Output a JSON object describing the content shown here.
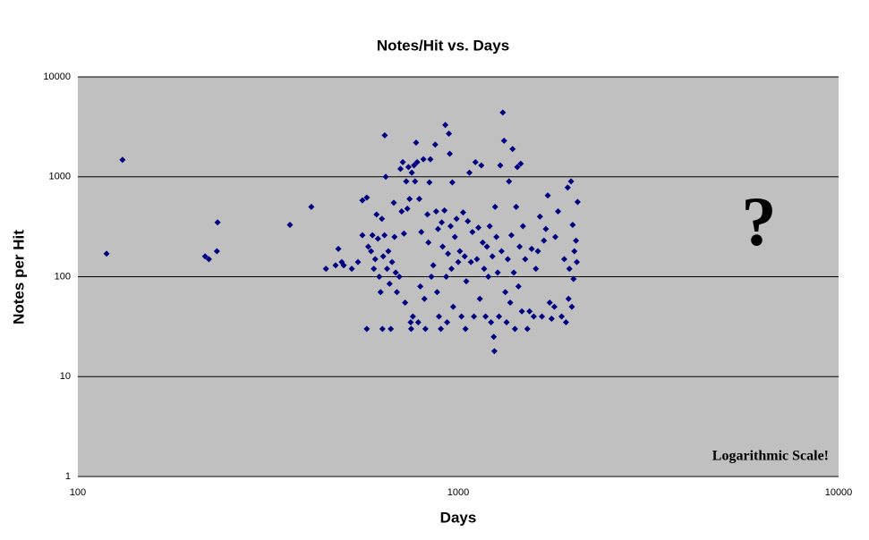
{
  "chart_data": {
    "type": "scatter",
    "title": "Notes/Hit vs. Days",
    "x_label": "Days",
    "y_label": "Notes per Hit",
    "annotations": [
      "?",
      "Logarithmic Scale!"
    ],
    "x_scale": "log",
    "y_scale": "log",
    "grid": true,
    "background": "#c0c0c0",
    "xlim": [
      100,
      10000
    ],
    "ylim": [
      1,
      10000
    ],
    "xticks": [
      100,
      1000,
      10000
    ],
    "yticks": [
      1,
      10,
      100,
      1000,
      10000
    ],
    "x": [
      119,
      131,
      216,
      221,
      232,
      233,
      361,
      411,
      449,
      476,
      484,
      494,
      500,
      525,
      545,
      560,
      560,
      575,
      575,
      580,
      590,
      595,
      600,
      605,
      610,
      615,
      620,
      625,
      630,
      632,
      635,
      640,
      641,
      645,
      650,
      655,
      660,
      665,
      670,
      677,
      680,
      685,
      690,
      700,
      705,
      710,
      715,
      720,
      725,
      730,
      735,
      740,
      745,
      750,
      752,
      755,
      760,
      765,
      770,
      775,
      780,
      785,
      790,
      795,
      800,
      810,
      815,
      820,
      830,
      835,
      840,
      845,
      850,
      860,
      870,
      875,
      880,
      885,
      890,
      900,
      905,
      910,
      920,
      925,
      930,
      935,
      940,
      945,
      950,
      955,
      960,
      965,
      970,
      980,
      990,
      1000,
      1010,
      1020,
      1030,
      1040,
      1045,
      1050,
      1060,
      1070,
      1080,
      1090,
      1100,
      1110,
      1120,
      1130,
      1140,
      1150,
      1160,
      1170,
      1180,
      1190,
      1200,
      1210,
      1220,
      1230,
      1240,
      1245,
      1250,
      1260,
      1270,
      1280,
      1290,
      1300,
      1310,
      1320,
      1330,
      1340,
      1350,
      1360,
      1370,
      1380,
      1390,
      1400,
      1410,
      1420,
      1430,
      1440,
      1450,
      1460,
      1470,
      1480,
      1500,
      1520,
      1540,
      1560,
      1580,
      1600,
      1620,
      1640,
      1660,
      1680,
      1700,
      1720,
      1740,
      1760,
      1790,
      1800,
      1830,
      1870,
      1900,
      1920,
      1940,
      1960,
      1980,
      2000,
      2020,
      2050,
      1990,
      2010,
      1950,
      2040,
      2060
    ],
    "series": [
      {
        "name": "Notes per Hit",
        "color": "#000080",
        "values": [
          170,
          1480,
          160,
          150,
          180,
          350,
          330,
          500,
          120,
          130,
          190,
          140,
          130,
          120,
          140,
          260,
          580,
          620,
          30,
          200,
          180,
          260,
          120,
          150,
          420,
          240,
          100,
          70,
          380,
          30,
          160,
          260,
          2600,
          1000,
          120,
          180,
          85,
          30,
          140,
          550,
          250,
          110,
          70,
          100,
          1200,
          450,
          1400,
          270,
          55,
          900,
          480,
          1250,
          600,
          35,
          30,
          1100,
          40,
          1300,
          900,
          2200,
          1400,
          35,
          600,
          80,
          280,
          1500,
          60,
          30,
          420,
          220,
          880,
          1500,
          100,
          130,
          2100,
          450,
          70,
          300,
          40,
          30,
          350,
          200,
          460,
          3300,
          100,
          35,
          170,
          2700,
          1700,
          320,
          120,
          880,
          50,
          250,
          380,
          140,
          180,
          40,
          440,
          160,
          30,
          90,
          360,
          1100,
          140,
          280,
          40,
          1400,
          150,
          310,
          60,
          1300,
          220,
          120,
          40,
          200,
          100,
          320,
          35,
          160,
          25,
          18,
          500,
          250,
          110,
          40,
          1300,
          180,
          4400,
          2300,
          70,
          35,
          150,
          900,
          55,
          260,
          1900,
          110,
          30,
          500,
          1250,
          80,
          200,
          1350,
          45,
          320,
          150,
          30,
          45,
          190,
          40,
          120,
          180,
          400,
          40,
          230,
          300,
          650,
          55,
          38,
          50,
          250,
          450,
          40,
          150,
          35,
          780,
          120,
          900,
          330,
          180,
          140,
          50,
          95,
          60,
          230,
          560
        ]
      }
    ]
  }
}
